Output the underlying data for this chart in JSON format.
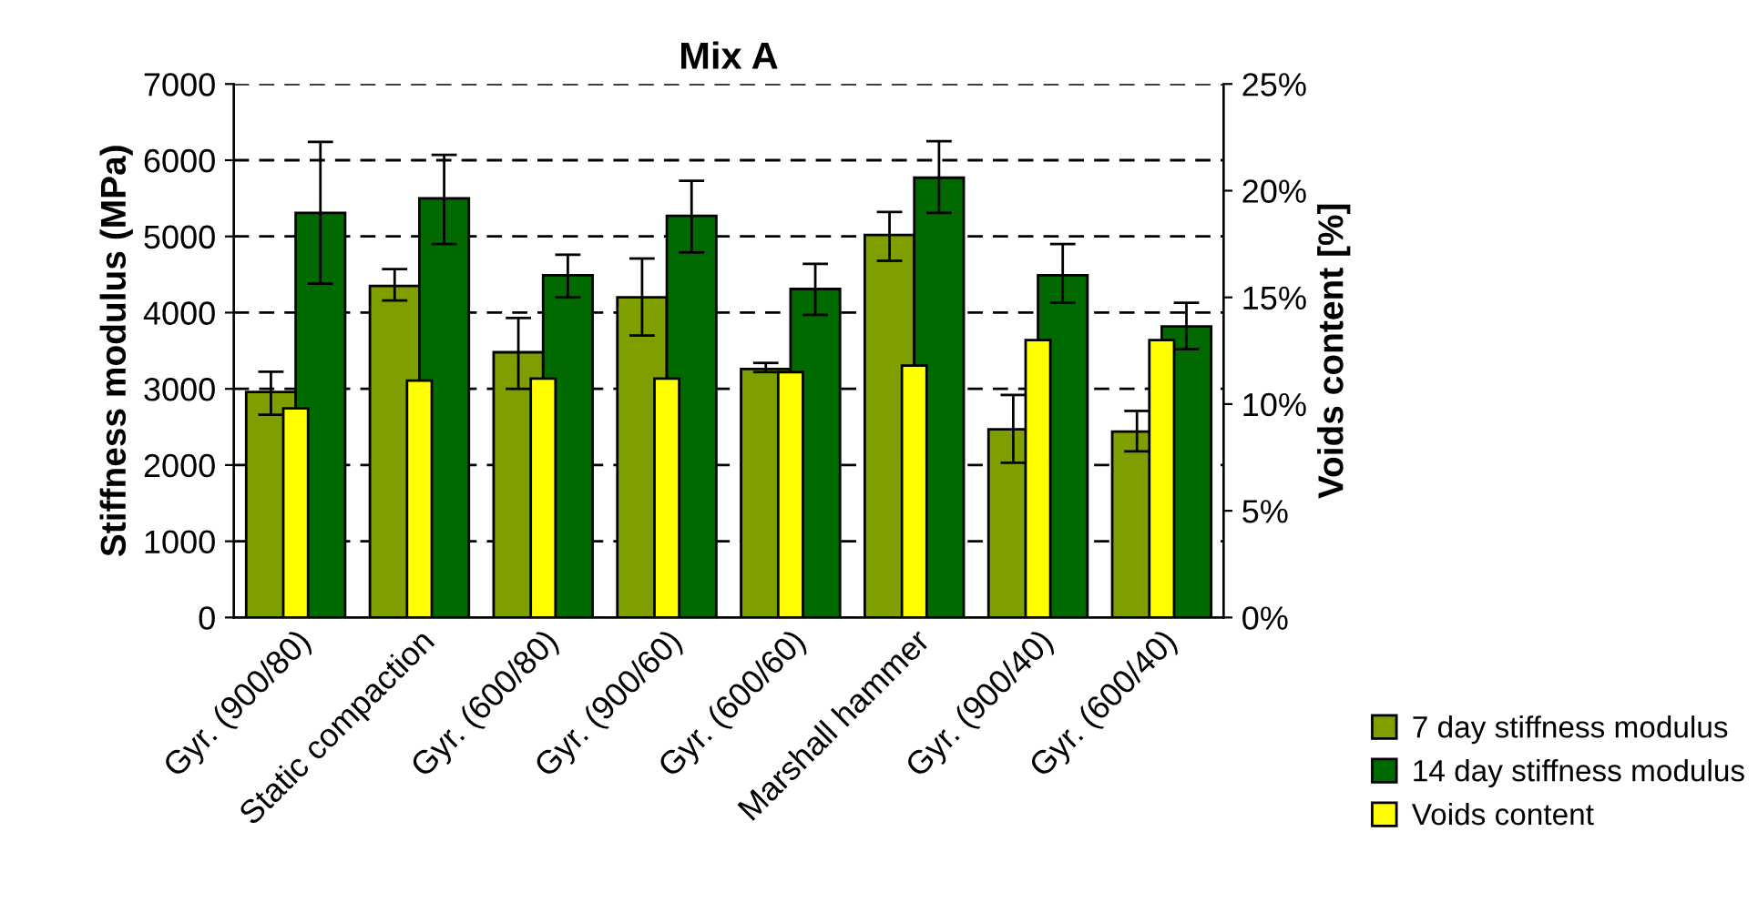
{
  "chart_data": {
    "type": "bar",
    "title": "Mix A",
    "ylabel": "Stiffness modulus (MPa)",
    "y2label": "Voids content [%]",
    "categories": [
      "Gyr. (900/80)",
      "Static compaction",
      "Gyr. (600/80)",
      "Gyr. (900/60)",
      "Gyr. (600/60)",
      "Marshall hammer",
      "Gyr. (900/40)",
      "Gyr. (600/40)"
    ],
    "series": [
      {
        "name": "7 day stiffness modulus",
        "color": "#7f9f00",
        "values": [
          2960,
          4350,
          3480,
          4200,
          3260,
          5020,
          2470,
          2440
        ],
        "errors": [
          [
            2660,
            3225
          ],
          [
            4160,
            4570
          ],
          [
            3000,
            3930
          ],
          [
            3700,
            4710
          ],
          [
            3220,
            3340
          ],
          [
            4680,
            5320
          ],
          [
            2030,
            2920
          ],
          [
            2180,
            2710
          ]
        ]
      },
      {
        "name": "14 day stiffness modulus",
        "color": "#006a00",
        "values": [
          5310,
          5500,
          4490,
          5270,
          4310,
          5770,
          4490,
          3820
        ],
        "errors": [
          [
            4380,
            6240
          ],
          [
            4900,
            6070
          ],
          [
            4200,
            4760
          ],
          [
            4790,
            5730
          ],
          [
            3970,
            4640
          ],
          [
            5310,
            6250
          ],
          [
            4130,
            4900
          ],
          [
            3520,
            4130
          ]
        ]
      },
      {
        "name": "Voids content",
        "color": "#ffff00",
        "axis": "y2",
        "values": [
          9.8,
          11.1,
          11.2,
          11.2,
          11.5,
          11.8,
          13.0,
          13.0
        ]
      }
    ],
    "ylim": [
      0,
      7000
    ],
    "yticks": [
      0,
      1000,
      2000,
      3000,
      4000,
      5000,
      6000,
      7000
    ],
    "y2lim": [
      0,
      25
    ],
    "y2ticks": [
      {
        "value": 0,
        "label": "0%"
      },
      {
        "value": 5,
        "label": "5%"
      },
      {
        "value": 10,
        "label": "10%"
      },
      {
        "value": 15,
        "label": "15%"
      },
      {
        "value": 20,
        "label": "20%"
      },
      {
        "value": 25,
        "label": "25%"
      }
    ],
    "grid": "y",
    "legend": "bottom right"
  }
}
